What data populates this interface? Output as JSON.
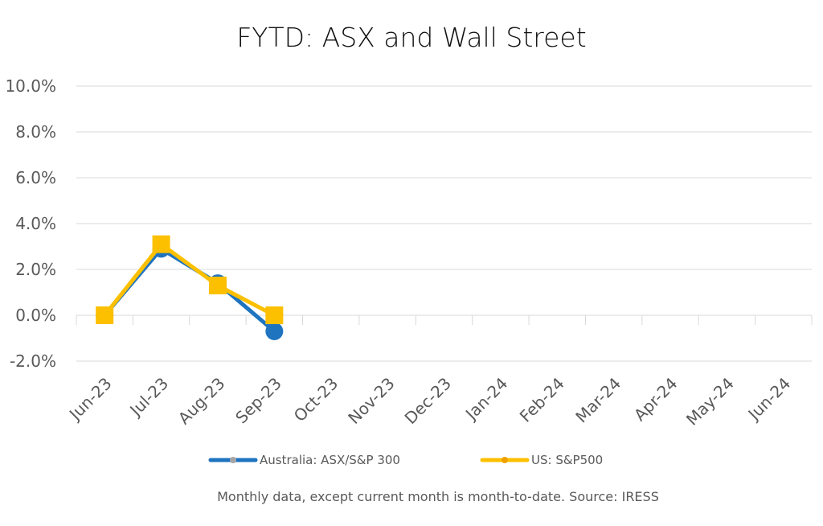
{
  "chart_data": {
    "type": "line",
    "title": "FYTD: ASX and Wall Street",
    "categories": [
      "Jun-23",
      "Jul-23",
      "Aug-23",
      "Sep-23",
      "Oct-23",
      "Nov-23",
      "Dec-23",
      "Jan-24",
      "Feb-24",
      "Mar-24",
      "Apr-24",
      "May-24",
      "Jun-24"
    ],
    "yticks": [
      "-2.0%",
      "0.0%",
      "2.0%",
      "4.0%",
      "6.0%",
      "8.0%",
      "10.0%"
    ],
    "ylim": [
      -2.0,
      10.0
    ],
    "grid": true,
    "legend_position": "bottom",
    "series": [
      {
        "name": "Australia: ASX/S&P 300",
        "color": "#1f74c0",
        "marker": "circle",
        "values": [
          0.0,
          2.9,
          1.4,
          -0.7,
          null,
          null,
          null,
          null,
          null,
          null,
          null,
          null,
          null
        ]
      },
      {
        "name": "US: S&P500",
        "color": "#fcc000",
        "marker": "square",
        "values": [
          0.0,
          3.1,
          1.3,
          0.0,
          null,
          null,
          null,
          null,
          null,
          null,
          null,
          null,
          null
        ]
      }
    ],
    "footnote": "Monthly data, except current month is month-to-date.  Source: IRESS"
  }
}
